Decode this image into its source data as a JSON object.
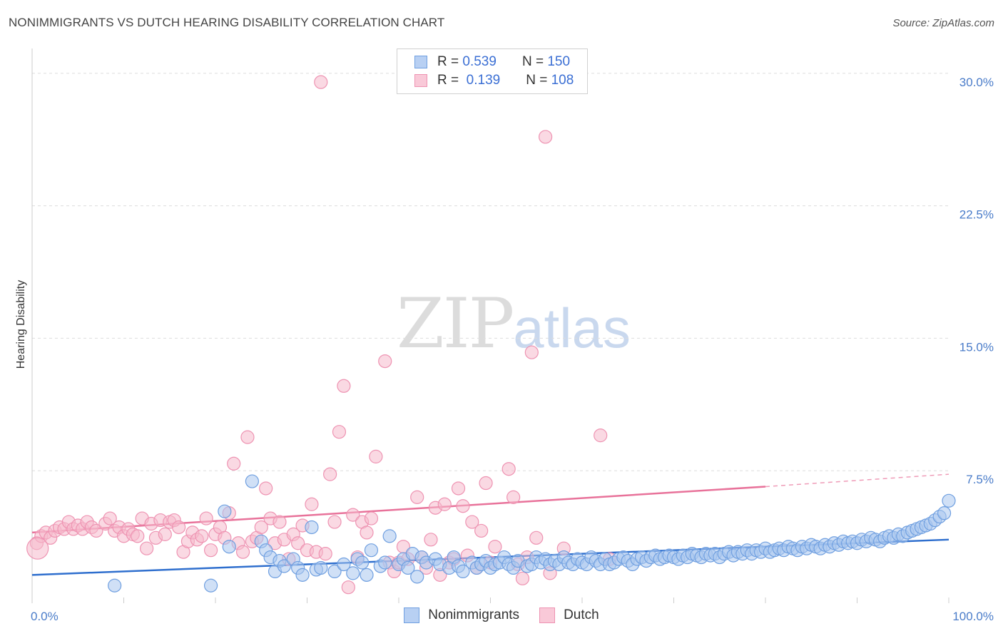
{
  "header": {
    "title": "NONIMMIGRANTS VS DUTCH HEARING DISABILITY CORRELATION CHART",
    "source": "Source: ZipAtlas.com"
  },
  "watermark": {
    "zip": "ZIP",
    "atlas": "atlas"
  },
  "legend": {
    "r_label": "R = ",
    "n_label": "N = ",
    "series": [
      {
        "name": "Nonimmigrants",
        "r": "0.539",
        "n": "150"
      },
      {
        "name": "Dutch",
        "r": "0.139",
        "n": "108"
      }
    ]
  },
  "colors": {
    "blue_fill": "#a9c6ef",
    "blue_stroke": "#6f9fe0",
    "blue_line": "#2f6fce",
    "pink_fill": "#f6b9cc",
    "pink_stroke": "#ee93b2",
    "pink_line": "#e8729a",
    "grid": "#dddddd",
    "tick_label": "#4a7cc9"
  },
  "chart_data": {
    "type": "scatter",
    "title": "NONIMMIGRANTS VS DUTCH HEARING DISABILITY CORRELATION CHART",
    "xlabel": "",
    "ylabel": "Hearing Disability",
    "xlim": [
      0,
      100
    ],
    "ylim": [
      0,
      31
    ],
    "x_tick_labels": [
      "0.0%",
      "100.0%"
    ],
    "y_ticks": [
      7.5,
      15.0,
      22.5,
      30.0
    ],
    "y_tick_labels": [
      "7.5%",
      "15.0%",
      "22.5%",
      "30.0%"
    ],
    "grid": true,
    "legend_position": "top-center",
    "series": [
      {
        "name": "Nonimmigrants",
        "r": 0.539,
        "n": 150,
        "trend": {
          "x": [
            0,
            100
          ],
          "y": [
            1.6,
            3.6
          ]
        },
        "points": [
          [
            9,
            1.0
          ],
          [
            19.5,
            1.0
          ],
          [
            21,
            5.2
          ],
          [
            21.5,
            3.2
          ],
          [
            24,
            6.9
          ],
          [
            25,
            3.5
          ],
          [
            25.5,
            3.0
          ],
          [
            26,
            2.6
          ],
          [
            26.5,
            1.8
          ],
          [
            27,
            2.4
          ],
          [
            27.5,
            2.1
          ],
          [
            28.5,
            2.5
          ],
          [
            29,
            2.0
          ],
          [
            29.5,
            1.6
          ],
          [
            30.5,
            4.3
          ],
          [
            31,
            1.9
          ],
          [
            31.5,
            2.0
          ],
          [
            33,
            1.8
          ],
          [
            34,
            2.2
          ],
          [
            35,
            1.7
          ],
          [
            35.5,
            2.5
          ],
          [
            36,
            2.3
          ],
          [
            36.5,
            1.6
          ],
          [
            37,
            3.0
          ],
          [
            38,
            2.1
          ],
          [
            38.5,
            2.3
          ],
          [
            39,
            3.8
          ],
          [
            40,
            2.2
          ],
          [
            40.5,
            2.5
          ],
          [
            41,
            2.0
          ],
          [
            41.5,
            2.8
          ],
          [
            42,
            1.5
          ],
          [
            42.5,
            2.6
          ],
          [
            43,
            2.3
          ],
          [
            44,
            2.5
          ],
          [
            44.5,
            2.2
          ],
          [
            45.5,
            2.0
          ],
          [
            46,
            2.6
          ],
          [
            46.5,
            2.1
          ],
          [
            47,
            1.8
          ],
          [
            48,
            2.3
          ],
          [
            48.5,
            2.0
          ],
          [
            49,
            2.2
          ],
          [
            49.5,
            2.4
          ],
          [
            50,
            2.0
          ],
          [
            50.5,
            2.2
          ],
          [
            51,
            2.3
          ],
          [
            51.5,
            2.6
          ],
          [
            52,
            2.2
          ],
          [
            52.5,
            2.0
          ],
          [
            53,
            2.4
          ],
          [
            54,
            2.1
          ],
          [
            54.5,
            2.2
          ],
          [
            55,
            2.6
          ],
          [
            55.5,
            2.3
          ],
          [
            56,
            2.5
          ],
          [
            56.5,
            2.2
          ],
          [
            57,
            2.4
          ],
          [
            57.5,
            2.2
          ],
          [
            58,
            2.6
          ],
          [
            58.5,
            2.3
          ],
          [
            59,
            2.2
          ],
          [
            59.5,
            2.5
          ],
          [
            60,
            2.3
          ],
          [
            60.5,
            2.2
          ],
          [
            61,
            2.6
          ],
          [
            61.5,
            2.4
          ],
          [
            62,
            2.2
          ],
          [
            62.5,
            2.5
          ],
          [
            63,
            2.2
          ],
          [
            63.5,
            2.3
          ],
          [
            64,
            2.5
          ],
          [
            64.5,
            2.6
          ],
          [
            65,
            2.4
          ],
          [
            65.5,
            2.2
          ],
          [
            66,
            2.5
          ],
          [
            66.5,
            2.6
          ],
          [
            67,
            2.4
          ],
          [
            67.5,
            2.6
          ],
          [
            68,
            2.7
          ],
          [
            68.5,
            2.5
          ],
          [
            69,
            2.6
          ],
          [
            69.5,
            2.7
          ],
          [
            70,
            2.6
          ],
          [
            70.5,
            2.5
          ],
          [
            71,
            2.7
          ],
          [
            71.5,
            2.6
          ],
          [
            72,
            2.8
          ],
          [
            72.5,
            2.7
          ],
          [
            73,
            2.6
          ],
          [
            73.5,
            2.8
          ],
          [
            74,
            2.7
          ],
          [
            74.5,
            2.8
          ],
          [
            75,
            2.6
          ],
          [
            75.5,
            2.8
          ],
          [
            76,
            2.9
          ],
          [
            76.5,
            2.7
          ],
          [
            77,
            2.9
          ],
          [
            77.5,
            2.8
          ],
          [
            78,
            3.0
          ],
          [
            78.5,
            2.8
          ],
          [
            79,
            3.0
          ],
          [
            79.5,
            2.9
          ],
          [
            80,
            3.1
          ],
          [
            80.5,
            2.9
          ],
          [
            81,
            3.0
          ],
          [
            81.5,
            3.1
          ],
          [
            82,
            3.0
          ],
          [
            82.5,
            3.2
          ],
          [
            83,
            3.1
          ],
          [
            83.5,
            3.0
          ],
          [
            84,
            3.2
          ],
          [
            84.5,
            3.1
          ],
          [
            85,
            3.3
          ],
          [
            85.5,
            3.2
          ],
          [
            86,
            3.1
          ],
          [
            86.5,
            3.3
          ],
          [
            87,
            3.2
          ],
          [
            87.5,
            3.4
          ],
          [
            88,
            3.3
          ],
          [
            88.5,
            3.5
          ],
          [
            89,
            3.4
          ],
          [
            89.5,
            3.5
          ],
          [
            90,
            3.4
          ],
          [
            90.5,
            3.6
          ],
          [
            91,
            3.5
          ],
          [
            91.5,
            3.7
          ],
          [
            92,
            3.6
          ],
          [
            92.5,
            3.5
          ],
          [
            93,
            3.7
          ],
          [
            93.5,
            3.8
          ],
          [
            94,
            3.7
          ],
          [
            94.5,
            3.9
          ],
          [
            95,
            3.8
          ],
          [
            95.5,
            4.0
          ],
          [
            96,
            4.1
          ],
          [
            96.5,
            4.2
          ],
          [
            97,
            4.3
          ],
          [
            97.5,
            4.4
          ],
          [
            98,
            4.5
          ],
          [
            98.5,
            4.7
          ],
          [
            99,
            4.9
          ],
          [
            99.5,
            5.1
          ],
          [
            100,
            5.8
          ]
        ]
      },
      {
        "name": "Dutch",
        "r": 0.139,
        "n": 108,
        "trend": {
          "x": [
            0,
            80
          ],
          "y": [
            4.0,
            6.6
          ]
        },
        "trend_dashed": {
          "x": [
            80,
            100
          ],
          "y": [
            6.6,
            7.3
          ]
        },
        "points": [
          [
            0.5,
            3.4
          ],
          [
            1,
            3.8
          ],
          [
            1.5,
            4.0
          ],
          [
            2,
            3.7
          ],
          [
            2.5,
            4.1
          ],
          [
            3,
            4.3
          ],
          [
            3.5,
            4.2
          ],
          [
            4,
            4.6
          ],
          [
            4.5,
            4.2
          ],
          [
            5,
            4.4
          ],
          [
            5.5,
            4.2
          ],
          [
            6,
            4.6
          ],
          [
            6.5,
            4.3
          ],
          [
            7,
            4.1
          ],
          [
            8,
            4.5
          ],
          [
            8.5,
            4.8
          ],
          [
            9,
            4.1
          ],
          [
            9.5,
            4.3
          ],
          [
            10,
            3.8
          ],
          [
            10.5,
            4.2
          ],
          [
            11,
            3.9
          ],
          [
            11.5,
            3.8
          ],
          [
            12,
            4.8
          ],
          [
            12.5,
            3.1
          ],
          [
            13,
            4.5
          ],
          [
            13.5,
            3.7
          ],
          [
            14,
            4.7
          ],
          [
            14.5,
            3.9
          ],
          [
            15,
            4.6
          ],
          [
            15.5,
            4.7
          ],
          [
            16,
            4.3
          ],
          [
            16.5,
            2.9
          ],
          [
            17,
            3.5
          ],
          [
            17.5,
            4.0
          ],
          [
            18,
            3.6
          ],
          [
            18.5,
            3.8
          ],
          [
            19,
            4.8
          ],
          [
            19.5,
            3.0
          ],
          [
            20,
            3.9
          ],
          [
            20.5,
            4.3
          ],
          [
            21,
            3.7
          ],
          [
            21.5,
            5.1
          ],
          [
            22,
            7.9
          ],
          [
            22.5,
            3.4
          ],
          [
            23,
            2.9
          ],
          [
            23.5,
            9.4
          ],
          [
            24,
            3.5
          ],
          [
            24.5,
            3.7
          ],
          [
            25,
            4.3
          ],
          [
            25.5,
            6.5
          ],
          [
            26,
            4.8
          ],
          [
            26.5,
            3.4
          ],
          [
            27,
            4.6
          ],
          [
            27.5,
            3.6
          ],
          [
            28,
            2.5
          ],
          [
            28.5,
            3.9
          ],
          [
            29,
            3.4
          ],
          [
            29.5,
            4.4
          ],
          [
            30,
            3.0
          ],
          [
            30.5,
            5.6
          ],
          [
            31,
            2.9
          ],
          [
            31.5,
            29.5
          ],
          [
            32,
            2.8
          ],
          [
            32.5,
            7.3
          ],
          [
            33,
            4.6
          ],
          [
            33.5,
            9.7
          ],
          [
            34,
            12.3
          ],
          [
            34.5,
            0.9
          ],
          [
            35,
            5.0
          ],
          [
            35.5,
            2.6
          ],
          [
            36,
            4.6
          ],
          [
            36.5,
            4.0
          ],
          [
            37,
            4.8
          ],
          [
            37.5,
            8.3
          ],
          [
            38.5,
            13.7
          ],
          [
            39,
            2.3
          ],
          [
            39.5,
            1.8
          ],
          [
            40,
            2.3
          ],
          [
            40.5,
            3.2
          ],
          [
            41,
            2.5
          ],
          [
            42,
            6.0
          ],
          [
            42.5,
            2.6
          ],
          [
            43,
            2.0
          ],
          [
            43.5,
            3.6
          ],
          [
            44,
            5.4
          ],
          [
            44.5,
            1.6
          ],
          [
            45,
            5.6
          ],
          [
            45.5,
            2.3
          ],
          [
            46,
            2.5
          ],
          [
            46.5,
            6.5
          ],
          [
            47,
            5.5
          ],
          [
            47.5,
            2.7
          ],
          [
            48,
            4.6
          ],
          [
            48.5,
            2.0
          ],
          [
            49,
            4.1
          ],
          [
            49.5,
            6.8
          ],
          [
            50,
            2.3
          ],
          [
            50.5,
            3.2
          ],
          [
            52,
            7.6
          ],
          [
            52.5,
            6.0
          ],
          [
            53,
            2.2
          ],
          [
            53.5,
            1.4
          ],
          [
            54,
            2.6
          ],
          [
            54.5,
            14.2
          ],
          [
            55,
            3.7
          ],
          [
            56,
            26.4
          ],
          [
            56.5,
            1.7
          ],
          [
            58,
            3.1
          ],
          [
            62,
            9.5
          ],
          [
            63,
            2.5
          ]
        ]
      }
    ]
  }
}
